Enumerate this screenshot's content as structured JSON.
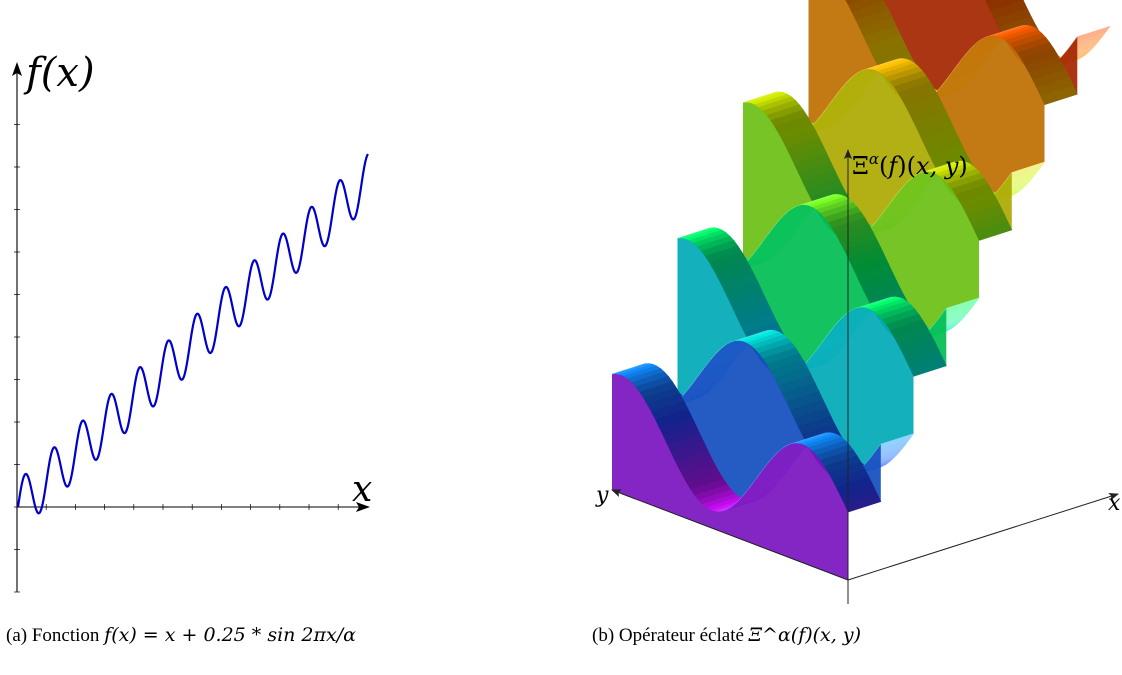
{
  "figure_a": {
    "y_axis_label": "f(x)",
    "x_axis_label": "x",
    "caption_tag": "(a)",
    "caption_text": "Fonction",
    "caption_formula": "f(x) = x + 0.25 * sin 2πx/α",
    "line_color": "#0000cc"
  },
  "figure_b": {
    "z_axis_label": "Ξ^α(f)(x, y)",
    "x_axis_label": "x",
    "y_axis_label": "y",
    "caption_tag": "(b)",
    "caption_text": "Opérateur éclaté",
    "caption_formula": "Ξ^α(f)(x, y)",
    "colormap": [
      "#ff00ff",
      "#2040ff",
      "#00e0ff",
      "#00ff60",
      "#c0ff00",
      "#ffcc00",
      "#ff4000",
      "#600000"
    ]
  },
  "chart_data": [
    {
      "type": "line",
      "function": "f(x) = x + 0.25 * sin(2*pi*x/alpha)",
      "ylabel": "f(x)",
      "xlabel": "x",
      "oscillations_visible": 12,
      "grid": false,
      "series": [
        {
          "color": "#0000cc"
        }
      ]
    },
    {
      "type": "surface",
      "zlabel": "Ξ^α(f)(x, y)",
      "xlabel": "x",
      "ylabel": "y",
      "grid": false
    }
  ]
}
